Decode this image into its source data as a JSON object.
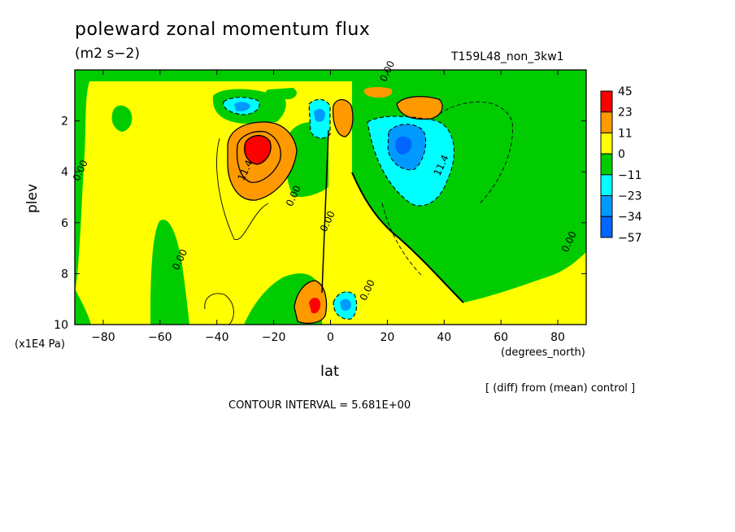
{
  "title": "poleward zonal momentum flux",
  "units": "(m2 s−2)",
  "run_id": "T159L48_non_3kw1",
  "contour_interval": "CONTOUR INTERVAL = 5.681E+00",
  "note": "[ (diff) from (mean) control ]",
  "x_unit": "(degrees_north)",
  "y_unit": "(x1E4 Pa)",
  "chart_data": {
    "type": "heatmap",
    "title": "poleward zonal momentum flux",
    "xlabel": "lat",
    "ylabel": "plev",
    "xlim": [
      -90,
      90
    ],
    "ylim": [
      10,
      0
    ],
    "x_ticks": [
      -80,
      -60,
      -40,
      -20,
      0,
      20,
      40,
      60,
      80
    ],
    "x_tick_labels": [
      "−80",
      "−60",
      "−40",
      "−20",
      "0",
      "20",
      "40",
      "60",
      "80"
    ],
    "y_ticks": [
      2,
      4,
      6,
      8,
      10
    ],
    "legend": {
      "placement": "right",
      "levels": [
        "45",
        "23",
        "11",
        "0",
        "−11",
        "−23",
        "−34",
        "−57"
      ],
      "colors": [
        "#ff0000",
        "#ff9900",
        "#ffff00",
        "#00cc00",
        "#00ffff",
        "#0099ff",
        "#0066ff"
      ]
    },
    "contour_labels": [
      {
        "lat": -29,
        "plev": 4.0,
        "text": "11.4"
      },
      {
        "lat": -87,
        "plev": 4.0,
        "text": "0.00"
      },
      {
        "lat": -12,
        "plev": 5.0,
        "text": "0.00"
      },
      {
        "lat": 0,
        "plev": 6.0,
        "text": "0.00"
      },
      {
        "lat": -52,
        "plev": 7.5,
        "text": "0.00"
      },
      {
        "lat": 14,
        "plev": 8.7,
        "text": "0.00"
      },
      {
        "lat": 21,
        "plev": 0.1,
        "text": "0.00"
      },
      {
        "lat": 40,
        "plev": 3.8,
        "text": "11.4"
      },
      {
        "lat": 85,
        "plev": 6.8,
        "text": "0.00"
      }
    ]
  }
}
